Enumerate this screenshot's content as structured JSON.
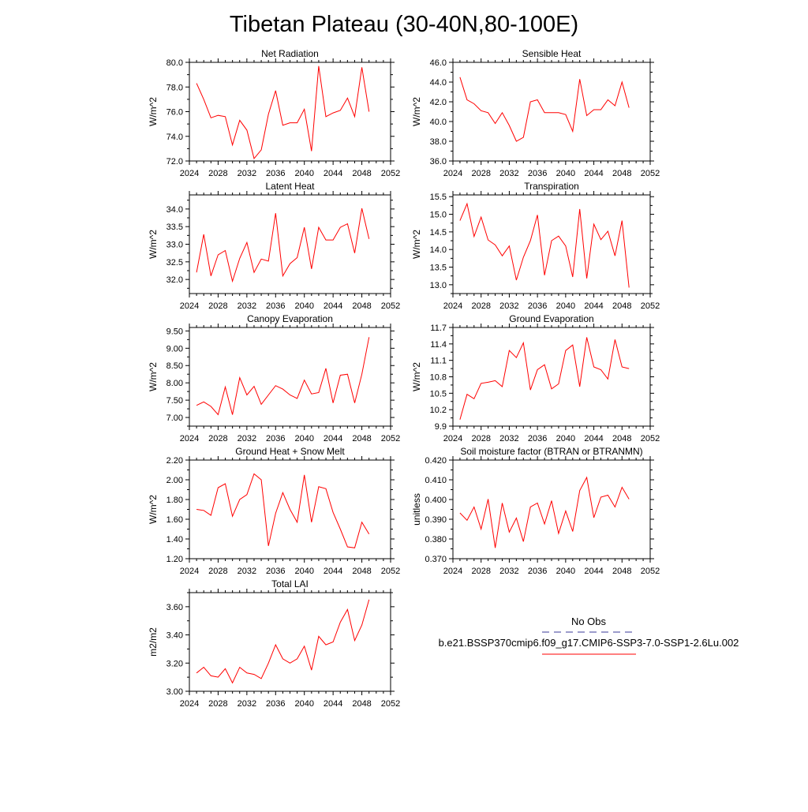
{
  "title": "Tibetan Plateau (30-40N,80-100E)",
  "legend": {
    "entries": [
      {
        "label": "No Obs",
        "color": "#3a3a9a",
        "dash": true
      },
      {
        "label": "b.e21.BSSP370cmip6.f09_g17.CMIP6-SSP3-7.0-SSP1-2.6Lu.002",
        "color": "#ff0000",
        "dash": false
      }
    ]
  },
  "chart_data": [
    {
      "type": "line",
      "title": "Net Radiation",
      "ylabel": "W/m^2",
      "xlim": [
        2024,
        2052
      ],
      "ylim": [
        72.0,
        80.0
      ],
      "xticks": [
        2024,
        2028,
        2032,
        2036,
        2040,
        2044,
        2048,
        2052
      ],
      "xtick_labels": [
        "2024",
        "2028",
        "2032",
        "2036",
        "2040",
        "2044",
        "2048",
        "2052"
      ],
      "yticks": [
        72.0,
        74.0,
        76.0,
        78.0,
        80.0
      ],
      "ytick_labels": [
        "72.0",
        "74.0",
        "76.0",
        "78.0",
        "80.0"
      ],
      "x": [
        2025,
        2026,
        2027,
        2028,
        2029,
        2030,
        2031,
        2032,
        2033,
        2034,
        2035,
        2036,
        2037,
        2038,
        2039,
        2040,
        2041,
        2042,
        2043,
        2044,
        2045,
        2046,
        2047,
        2048,
        2049
      ],
      "series": [
        {
          "values": [
            78.3,
            77.0,
            75.5,
            75.7,
            75.6,
            73.3,
            75.3,
            74.5,
            72.2,
            72.9,
            75.8,
            77.7,
            74.9,
            75.1,
            75.1,
            76.2,
            72.8,
            79.7,
            75.6,
            75.9,
            76.1,
            77.1,
            75.6,
            79.6,
            76.0
          ]
        }
      ]
    },
    {
      "type": "line",
      "title": "Sensible Heat",
      "ylabel": "W/m^2",
      "xlim": [
        2024,
        2052
      ],
      "ylim": [
        36.0,
        46.0
      ],
      "xticks": [
        2024,
        2028,
        2032,
        2036,
        2040,
        2044,
        2048,
        2052
      ],
      "xtick_labels": [
        "2024",
        "2028",
        "2032",
        "2036",
        "2040",
        "2044",
        "2048",
        "2052"
      ],
      "yticks": [
        36.0,
        38.0,
        40.0,
        42.0,
        44.0,
        46.0
      ],
      "ytick_labels": [
        "36.0",
        "38.0",
        "40.0",
        "42.0",
        "44.0",
        "46.0"
      ],
      "x": [
        2025,
        2026,
        2027,
        2028,
        2029,
        2030,
        2031,
        2032,
        2033,
        2034,
        2035,
        2036,
        2037,
        2038,
        2039,
        2040,
        2041,
        2042,
        2043,
        2044,
        2045,
        2046,
        2047,
        2048,
        2049
      ],
      "series": [
        {
          "values": [
            44.5,
            42.2,
            41.8,
            41.1,
            40.9,
            39.8,
            40.9,
            39.6,
            38.0,
            38.4,
            42.0,
            42.2,
            40.9,
            40.9,
            40.9,
            40.7,
            39.0,
            44.3,
            40.6,
            41.2,
            41.2,
            42.2,
            41.6,
            44.0,
            41.4
          ]
        }
      ]
    },
    {
      "type": "line",
      "title": "Latent Heat",
      "ylabel": "W/m^2",
      "xlim": [
        2024,
        2052
      ],
      "ylim": [
        31.6,
        34.4
      ],
      "xticks": [
        2024,
        2028,
        2032,
        2036,
        2040,
        2044,
        2048,
        2052
      ],
      "xtick_labels": [
        "2024",
        "2028",
        "2032",
        "2036",
        "2040",
        "2044",
        "2048",
        "2052"
      ],
      "yticks": [
        32.0,
        32.5,
        33.0,
        33.5,
        34.0
      ],
      "ytick_labels": [
        "32.0",
        "32.5",
        "33.0",
        "33.5",
        "34.0"
      ],
      "x": [
        2025,
        2026,
        2027,
        2028,
        2029,
        2030,
        2031,
        2032,
        2033,
        2034,
        2035,
        2036,
        2037,
        2038,
        2039,
        2040,
        2041,
        2042,
        2043,
        2044,
        2045,
        2046,
        2047,
        2048,
        2049
      ],
      "series": [
        {
          "values": [
            32.2,
            33.28,
            32.1,
            32.7,
            32.82,
            31.95,
            32.6,
            33.05,
            32.2,
            32.58,
            32.52,
            33.88,
            32.1,
            32.45,
            32.62,
            33.48,
            32.3,
            33.48,
            33.12,
            33.12,
            33.48,
            33.58,
            32.75,
            34.02,
            33.15
          ]
        }
      ]
    },
    {
      "type": "line",
      "title": "Transpiration",
      "ylabel": "W/m^2",
      "xlim": [
        2024,
        2052
      ],
      "ylim": [
        12.75,
        15.55
      ],
      "xticks": [
        2024,
        2028,
        2032,
        2036,
        2040,
        2044,
        2048,
        2052
      ],
      "xtick_labels": [
        "2024",
        "2028",
        "2032",
        "2036",
        "2040",
        "2044",
        "2048",
        "2052"
      ],
      "yticks": [
        13.0,
        13.5,
        14.0,
        14.5,
        15.0,
        15.5
      ],
      "ytick_labels": [
        "13.0",
        "13.5",
        "14.0",
        "14.5",
        "15.0",
        "15.5"
      ],
      "x": [
        2025,
        2026,
        2027,
        2028,
        2029,
        2030,
        2031,
        2032,
        2033,
        2034,
        2035,
        2036,
        2037,
        2038,
        2039,
        2040,
        2041,
        2042,
        2043,
        2044,
        2045,
        2046,
        2047,
        2048,
        2049
      ],
      "series": [
        {
          "values": [
            14.82,
            15.3,
            14.37,
            14.92,
            14.27,
            14.13,
            13.82,
            14.1,
            13.13,
            13.78,
            14.25,
            14.98,
            13.27,
            14.25,
            14.38,
            14.1,
            13.22,
            15.15,
            13.18,
            14.72,
            14.28,
            14.52,
            13.82,
            14.82,
            12.92
          ]
        }
      ]
    },
    {
      "type": "line",
      "title": "Canopy Evaporation",
      "ylabel": "W/m^2",
      "xlim": [
        2024,
        2052
      ],
      "ylim": [
        6.75,
        9.6
      ],
      "xticks": [
        2024,
        2028,
        2032,
        2036,
        2040,
        2044,
        2048,
        2052
      ],
      "xtick_labels": [
        "2024",
        "2028",
        "2032",
        "2036",
        "2040",
        "2044",
        "2048",
        "2052"
      ],
      "yticks": [
        7.0,
        7.5,
        8.0,
        8.5,
        9.0,
        9.5
      ],
      "ytick_labels": [
        "7.00",
        "7.50",
        "8.00",
        "8.50",
        "9.00",
        "9.50"
      ],
      "x": [
        2025,
        2026,
        2027,
        2028,
        2029,
        2030,
        2031,
        2032,
        2033,
        2034,
        2035,
        2036,
        2037,
        2038,
        2039,
        2040,
        2041,
        2042,
        2043,
        2044,
        2045,
        2046,
        2047,
        2048,
        2049
      ],
      "series": [
        {
          "values": [
            7.35,
            7.45,
            7.32,
            7.08,
            7.88,
            7.08,
            8.15,
            7.65,
            7.9,
            7.38,
            7.65,
            7.92,
            7.82,
            7.65,
            7.55,
            8.08,
            7.68,
            7.72,
            8.42,
            7.42,
            8.22,
            8.25,
            7.42,
            8.25,
            9.32
          ]
        }
      ]
    },
    {
      "type": "line",
      "title": "Ground Evaporation",
      "ylabel": "W/m^2",
      "xlim": [
        2024,
        2052
      ],
      "ylim": [
        9.9,
        11.7
      ],
      "xticks": [
        2024,
        2028,
        2032,
        2036,
        2040,
        2044,
        2048,
        2052
      ],
      "xtick_labels": [
        "2024",
        "2028",
        "2032",
        "2036",
        "2040",
        "2044",
        "2048",
        "2052"
      ],
      "yticks": [
        9.9,
        10.2,
        10.5,
        10.8,
        11.1,
        11.4,
        11.7
      ],
      "ytick_labels": [
        "9.9",
        "10.2",
        "10.5",
        "10.8",
        "11.1",
        "11.4",
        "11.7"
      ],
      "x": [
        2025,
        2026,
        2027,
        2028,
        2029,
        2030,
        2031,
        2032,
        2033,
        2034,
        2035,
        2036,
        2037,
        2038,
        2039,
        2040,
        2041,
        2042,
        2043,
        2044,
        2045,
        2046,
        2047,
        2048,
        2049
      ],
      "series": [
        {
          "values": [
            10.02,
            10.48,
            10.4,
            10.68,
            10.7,
            10.73,
            10.62,
            11.28,
            11.15,
            11.42,
            10.56,
            10.93,
            11.02,
            10.58,
            10.67,
            11.28,
            11.38,
            10.62,
            11.52,
            10.98,
            10.93,
            10.76,
            11.48,
            10.98,
            10.95
          ]
        }
      ]
    },
    {
      "type": "line",
      "title": "Ground Heat + Snow Melt",
      "ylabel": "W/m^2",
      "xlim": [
        2024,
        2052
      ],
      "ylim": [
        1.2,
        2.2
      ],
      "xticks": [
        2024,
        2028,
        2032,
        2036,
        2040,
        2044,
        2048,
        2052
      ],
      "xtick_labels": [
        "2024",
        "2028",
        "2032",
        "2036",
        "2040",
        "2044",
        "2048",
        "2052"
      ],
      "yticks": [
        1.2,
        1.4,
        1.6,
        1.8,
        2.0,
        2.2
      ],
      "ytick_labels": [
        "1.20",
        "1.40",
        "1.60",
        "1.80",
        "2.00",
        "2.20"
      ],
      "x": [
        2025,
        2026,
        2027,
        2028,
        2029,
        2030,
        2031,
        2032,
        2033,
        2034,
        2035,
        2036,
        2037,
        2038,
        2039,
        2040,
        2041,
        2042,
        2043,
        2044,
        2045,
        2046,
        2047,
        2048,
        2049
      ],
      "series": [
        {
          "values": [
            1.7,
            1.69,
            1.64,
            1.92,
            1.96,
            1.63,
            1.8,
            1.85,
            2.06,
            2.0,
            1.33,
            1.66,
            1.87,
            1.7,
            1.57,
            2.05,
            1.57,
            1.93,
            1.91,
            1.67,
            1.5,
            1.32,
            1.31,
            1.57,
            1.45
          ]
        }
      ]
    },
    {
      "type": "line",
      "title": "Soil moisture factor (BTRAN or BTRANMN)",
      "ylabel": "unitless",
      "xlim": [
        2024,
        2052
      ],
      "ylim": [
        0.37,
        0.42
      ],
      "xticks": [
        2024,
        2028,
        2032,
        2036,
        2040,
        2044,
        2048,
        2052
      ],
      "xtick_labels": [
        "2024",
        "2028",
        "2032",
        "2036",
        "2040",
        "2044",
        "2048",
        "2052"
      ],
      "yticks": [
        0.37,
        0.38,
        0.39,
        0.4,
        0.41,
        0.42
      ],
      "ytick_labels": [
        "0.370",
        "0.380",
        "0.390",
        "0.400",
        "0.410",
        "0.420"
      ],
      "x": [
        2025,
        2026,
        2027,
        2028,
        2029,
        2030,
        2031,
        2032,
        2033,
        2034,
        2035,
        2036,
        2037,
        2038,
        2039,
        2040,
        2041,
        2042,
        2043,
        2044,
        2045,
        2046,
        2047,
        2048,
        2049
      ],
      "series": [
        {
          "values": [
            0.3932,
            0.3895,
            0.3962,
            0.385,
            0.4002,
            0.3755,
            0.3982,
            0.3835,
            0.3906,
            0.3787,
            0.3962,
            0.3982,
            0.3876,
            0.3994,
            0.3828,
            0.3942,
            0.3838,
            0.4045,
            0.4112,
            0.3908,
            0.4012,
            0.4022,
            0.3962,
            0.4062,
            0.4002
          ]
        }
      ]
    },
    {
      "type": "line",
      "title": "Total LAI",
      "ylabel": "m2/m2",
      "xlim": [
        2024,
        2052
      ],
      "ylim": [
        3.0,
        3.7
      ],
      "xticks": [
        2024,
        2028,
        2032,
        2036,
        2040,
        2044,
        2048,
        2052
      ],
      "xtick_labels": [
        "2024",
        "2028",
        "2032",
        "2036",
        "2040",
        "2044",
        "2048",
        "2052"
      ],
      "yticks": [
        3.0,
        3.2,
        3.4,
        3.6
      ],
      "ytick_labels": [
        "3.00",
        "3.20",
        "3.40",
        "3.60"
      ],
      "x": [
        2025,
        2026,
        2027,
        2028,
        2029,
        2030,
        2031,
        2032,
        2033,
        2034,
        2035,
        2036,
        2037,
        2038,
        2039,
        2040,
        2041,
        2042,
        2043,
        2044,
        2045,
        2046,
        2047,
        2048,
        2049
      ],
      "series": [
        {
          "values": [
            3.13,
            3.17,
            3.11,
            3.1,
            3.16,
            3.06,
            3.17,
            3.13,
            3.12,
            3.09,
            3.2,
            3.33,
            3.23,
            3.2,
            3.23,
            3.32,
            3.15,
            3.39,
            3.33,
            3.35,
            3.49,
            3.58,
            3.36,
            3.47,
            3.65
          ]
        }
      ]
    }
  ]
}
